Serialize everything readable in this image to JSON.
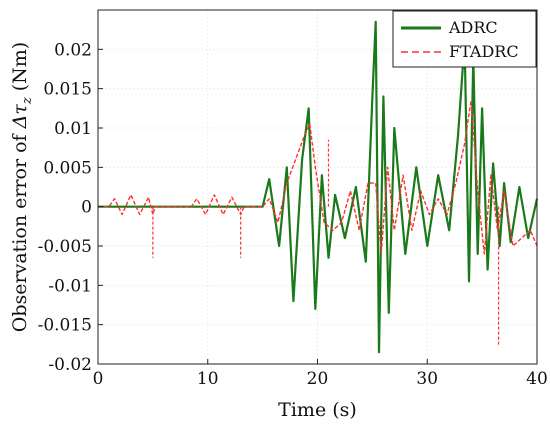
{
  "chart_data": {
    "type": "line",
    "xlabel": "Time (s)",
    "ylabel": {
      "prefix": "Observation error of ",
      "symbol": "Δτ",
      "subscript": "z",
      "suffix": " (Nm)"
    },
    "xlim": [
      0,
      40
    ],
    "ylim": [
      -0.02,
      0.025
    ],
    "x_ticks": [
      0,
      10,
      20,
      30,
      40
    ],
    "x_tick_labels": [
      "0",
      "10",
      "20",
      "30",
      "40"
    ],
    "y_ticks": [
      -0.02,
      -0.015,
      -0.01,
      -0.005,
      0,
      0.005,
      0.01,
      0.015,
      0.02
    ],
    "y_tick_labels": [
      "-0.02",
      "-0.015",
      "-0.01",
      "-0.005",
      "0",
      "0.005",
      "0.01",
      "0.015",
      "0.02"
    ],
    "grid": true,
    "legend_position": "top-right",
    "series": [
      {
        "name": "ADRC",
        "color": "#1a7a1a",
        "style": "solid",
        "x": [
          0,
          1.5,
          5.0,
          8.5,
          13.0,
          15.0,
          15.6,
          16.5,
          17.2,
          17.8,
          18.6,
          19.2,
          19.8,
          20.4,
          21.0,
          21.6,
          22.5,
          23.5,
          24.4,
          25.0,
          25.3,
          25.6,
          26.0,
          26.5,
          27.0,
          28.0,
          29.0,
          30.0,
          31.0,
          32.0,
          32.8,
          33.4,
          33.8,
          34.2,
          34.6,
          35.0,
          35.5,
          36.0,
          36.6,
          37.0,
          37.6,
          38.4,
          39.2,
          40.0
        ],
        "y": [
          0,
          0,
          0,
          0,
          0,
          0,
          0.0035,
          -0.005,
          0.005,
          -0.012,
          0.006,
          0.0125,
          -0.013,
          0.004,
          -0.0065,
          0.0015,
          -0.004,
          0.0025,
          -0.007,
          0.014,
          0.0235,
          -0.0185,
          0.014,
          -0.0135,
          0.01,
          -0.006,
          0.005,
          -0.005,
          0.004,
          -0.003,
          0.009,
          0.021,
          -0.0095,
          0.019,
          -0.006,
          0.0125,
          -0.008,
          0.0055,
          -0.005,
          0.003,
          -0.0045,
          0.0025,
          -0.004,
          0.001
        ]
      },
      {
        "name": "FTADRC",
        "color": "#ff3030",
        "style": "dashed",
        "x": [
          0,
          1.0,
          1.5,
          2.2,
          3.0,
          3.8,
          4.6,
          5.0,
          5.2,
          8.5,
          9.0,
          9.8,
          10.6,
          11.4,
          12.2,
          13.0,
          13.3,
          15.0,
          15.6,
          16.4,
          17.2,
          18.0,
          18.8,
          19.3,
          19.8,
          20.6,
          21.4,
          22.2,
          23.0,
          23.8,
          24.6,
          25.3,
          25.8,
          26.4,
          27.0,
          27.8,
          28.6,
          29.4,
          30.2,
          31.0,
          31.8,
          32.6,
          33.4,
          34.0,
          34.6,
          35.2,
          35.8,
          36.4,
          37.0,
          37.8,
          38.6,
          39.4,
          40.0
        ],
        "y": [
          0,
          0,
          0.001,
          -0.001,
          0.0015,
          -0.001,
          0.0012,
          -0.001,
          0,
          0,
          0.001,
          -0.001,
          0.0015,
          -0.001,
          0.0012,
          -0.001,
          0,
          0,
          0.001,
          -0.002,
          0.003,
          0.006,
          0.009,
          0.0105,
          0.005,
          -0.002,
          -0.003,
          -0.002,
          0.002,
          -0.003,
          0.003,
          0.003,
          -0.006,
          0.005,
          -0.003,
          0.004,
          -0.003,
          0.002,
          -0.001,
          0.001,
          -0.001,
          0.003,
          0.008,
          0.0135,
          0.002,
          -0.006,
          0.004,
          -0.003,
          0.002,
          -0.005,
          -0.004,
          -0.003,
          -0.005
        ]
      }
    ],
    "annotations": [
      {
        "x": 5.0,
        "y": -0.0065
      },
      {
        "x": 13.0,
        "y": -0.0065
      },
      {
        "x": 21.0,
        "y": 0.0085
      },
      {
        "x": 36.5,
        "y": -0.0178
      }
    ]
  }
}
